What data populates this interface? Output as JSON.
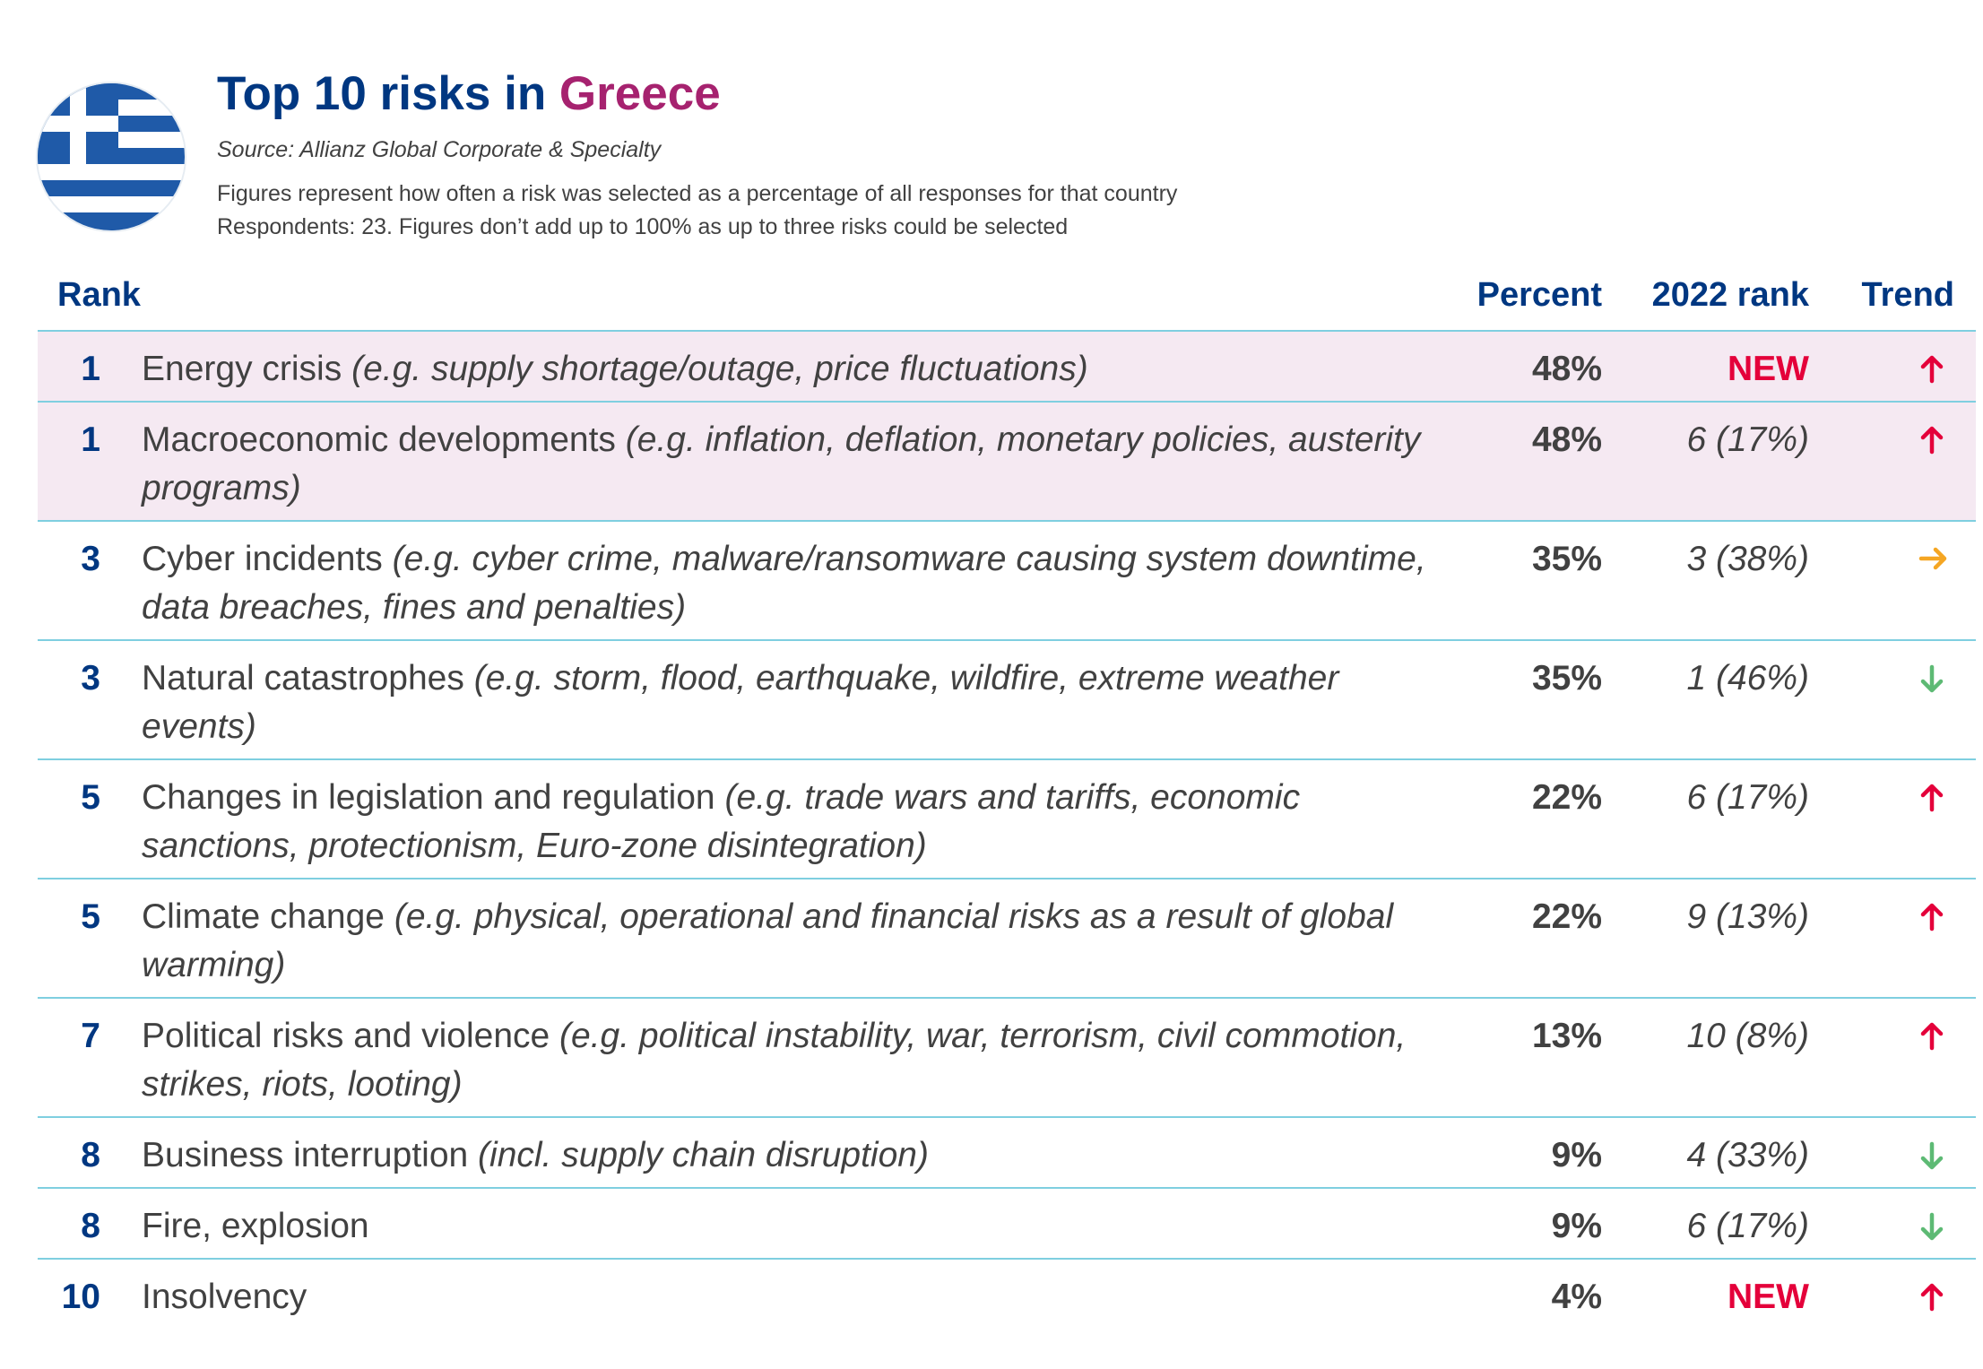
{
  "header": {
    "title_prefix": "Top 10 risks in ",
    "title_country": "Greece",
    "source": "Source: Allianz Global Corporate & Specialty",
    "desc_line1": "Figures represent how often a risk was selected as a percentage of all responses for that country",
    "desc_line2": "Respondents: 23. Figures don’t add up to 100% as up to three risks could be selected"
  },
  "columns": {
    "rank": "Rank",
    "percent": "Percent",
    "prev_rank": "2022 rank",
    "trend": "Trend"
  },
  "colors": {
    "up": "#e4003a",
    "steady": "#f5a623",
    "down": "#5dba74"
  },
  "rows": [
    {
      "rank": "1",
      "risk": "Energy crisis",
      "example": "(e.g. supply shortage/outage, price fluctuations)",
      "percent": "48%",
      "prev": "NEW",
      "trend_icon": "arrow-up-icon"
    },
    {
      "rank": "1",
      "risk": "Macroeconomic developments",
      "example": "(e.g. inflation, deflation, monetary policies, austerity programs)",
      "percent": "48%",
      "prev": "6 (17%)",
      "trend_icon": "arrow-up-icon"
    },
    {
      "rank": "3",
      "risk": "Cyber incidents",
      "example": "(e.g. cyber crime, malware/ransomware causing system downtime, data breaches, fines and penalties)",
      "percent": "35%",
      "prev": "3 (38%)",
      "trend_icon": "arrow-right-icon"
    },
    {
      "rank": "3",
      "risk": "Natural catastrophes",
      "example": "(e.g. storm, flood, earthquake, wildfire, extreme weather events)",
      "percent": "35%",
      "prev": "1 (46%)",
      "trend_icon": "arrow-down-icon"
    },
    {
      "rank": "5",
      "risk": "Changes in legislation and regulation",
      "example": "(e.g. trade wars and tariffs, economic sanctions, protectionism, Euro-zone disintegration)",
      "percent": "22%",
      "prev": "6 (17%)",
      "trend_icon": "arrow-up-icon"
    },
    {
      "rank": "5",
      "risk": "Climate change",
      "example": "(e.g. physical, operational and financial risks as a result of global warming)",
      "percent": "22%",
      "prev": "9 (13%)",
      "trend_icon": "arrow-up-icon"
    },
    {
      "rank": "7",
      "risk": "Political risks and violence",
      "example": "(e.g. political instability, war, terrorism, civil commotion, strikes, riots, looting)",
      "percent": "13%",
      "prev": "10 (8%)",
      "trend_icon": "arrow-up-icon"
    },
    {
      "rank": "8",
      "risk": "Business interruption",
      "example": "(incl. supply chain disruption)",
      "percent": "9%",
      "prev": "4 (33%)",
      "trend_icon": "arrow-down-icon"
    },
    {
      "rank": "8",
      "risk": "Fire, explosion",
      "example": "",
      "percent": "9%",
      "prev": "6 (17%)",
      "trend_icon": "arrow-down-icon"
    },
    {
      "rank": "10",
      "risk": "Insolvency",
      "example": "",
      "percent": "4%",
      "prev": "NEW",
      "trend_icon": "arrow-up-icon"
    }
  ]
}
